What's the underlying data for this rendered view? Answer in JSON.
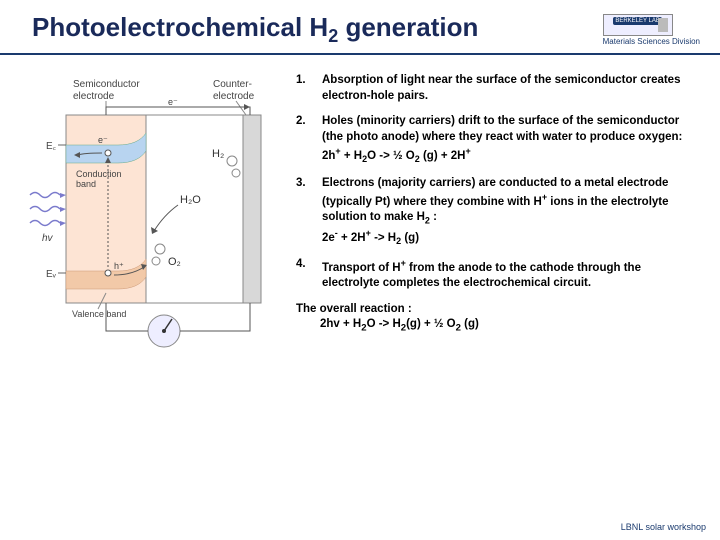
{
  "title_html": "Photoelectrochemical H<sub>2</sub> generation",
  "logo": {
    "division": "Materials Sciences Division",
    "lab": "BERKELEY LAB"
  },
  "diagram": {
    "labels": {
      "semi": "Semiconductor",
      "electrode": "electrode",
      "counter": "Counter-",
      "electrode2": "electrode",
      "ec": "E꜀",
      "ev": "Eᵥ",
      "cb": "Conduction",
      "cb2": "band",
      "vb": "Valence band",
      "hv": "hv",
      "e": "e⁻",
      "h": "h⁺",
      "h2": "H₂",
      "o2": "O₂",
      "h2o": "H₂O"
    },
    "colors": {
      "semi_fill": "#fde4d4",
      "counter_fill": "#d8d8d8",
      "cb_fill": "#b8d4f0",
      "vb_fill": "#f2c9a8",
      "border": "#888888",
      "arrow": "#555555",
      "wave": "#7a7acc"
    }
  },
  "steps": [
    {
      "n": "1.",
      "html": "Absorption of light near the surface of the semiconductor creates electron-hole pairs."
    },
    {
      "n": "2.",
      "html": "Holes (minority carriers) drift to the surface of the semiconductor (the photo anode) where they react with water to produce oxygen:<br>2h<sup>+</sup> + H<sub>2</sub>O -> ½ O<sub>2</sub> (g) + 2H<sup>+</sup>"
    },
    {
      "n": "3.",
      "html": "Electrons (majority carriers) are conducted to a metal electrode (typically Pt) where they combine with H<sup>+</sup> ions in the electrolyte solution to make H<sub>2</sub> :<br>2e<sup>-</sup> + 2H<sup>+</sup> -> H<sub>2</sub> (g)"
    },
    {
      "n": "4.",
      "html": "Transport of H<sup>+</sup> from the anode to the cathode through the electrolyte completes the electrochemical circuit."
    }
  ],
  "overall": {
    "label": "The overall reaction :",
    "eq_html": "2h<b>v</b> + H<sub>2</sub>O -> H<sub>2</sub>(g) + ½ O<sub>2</sub> (g)"
  },
  "footer": "LBNL solar workshop"
}
